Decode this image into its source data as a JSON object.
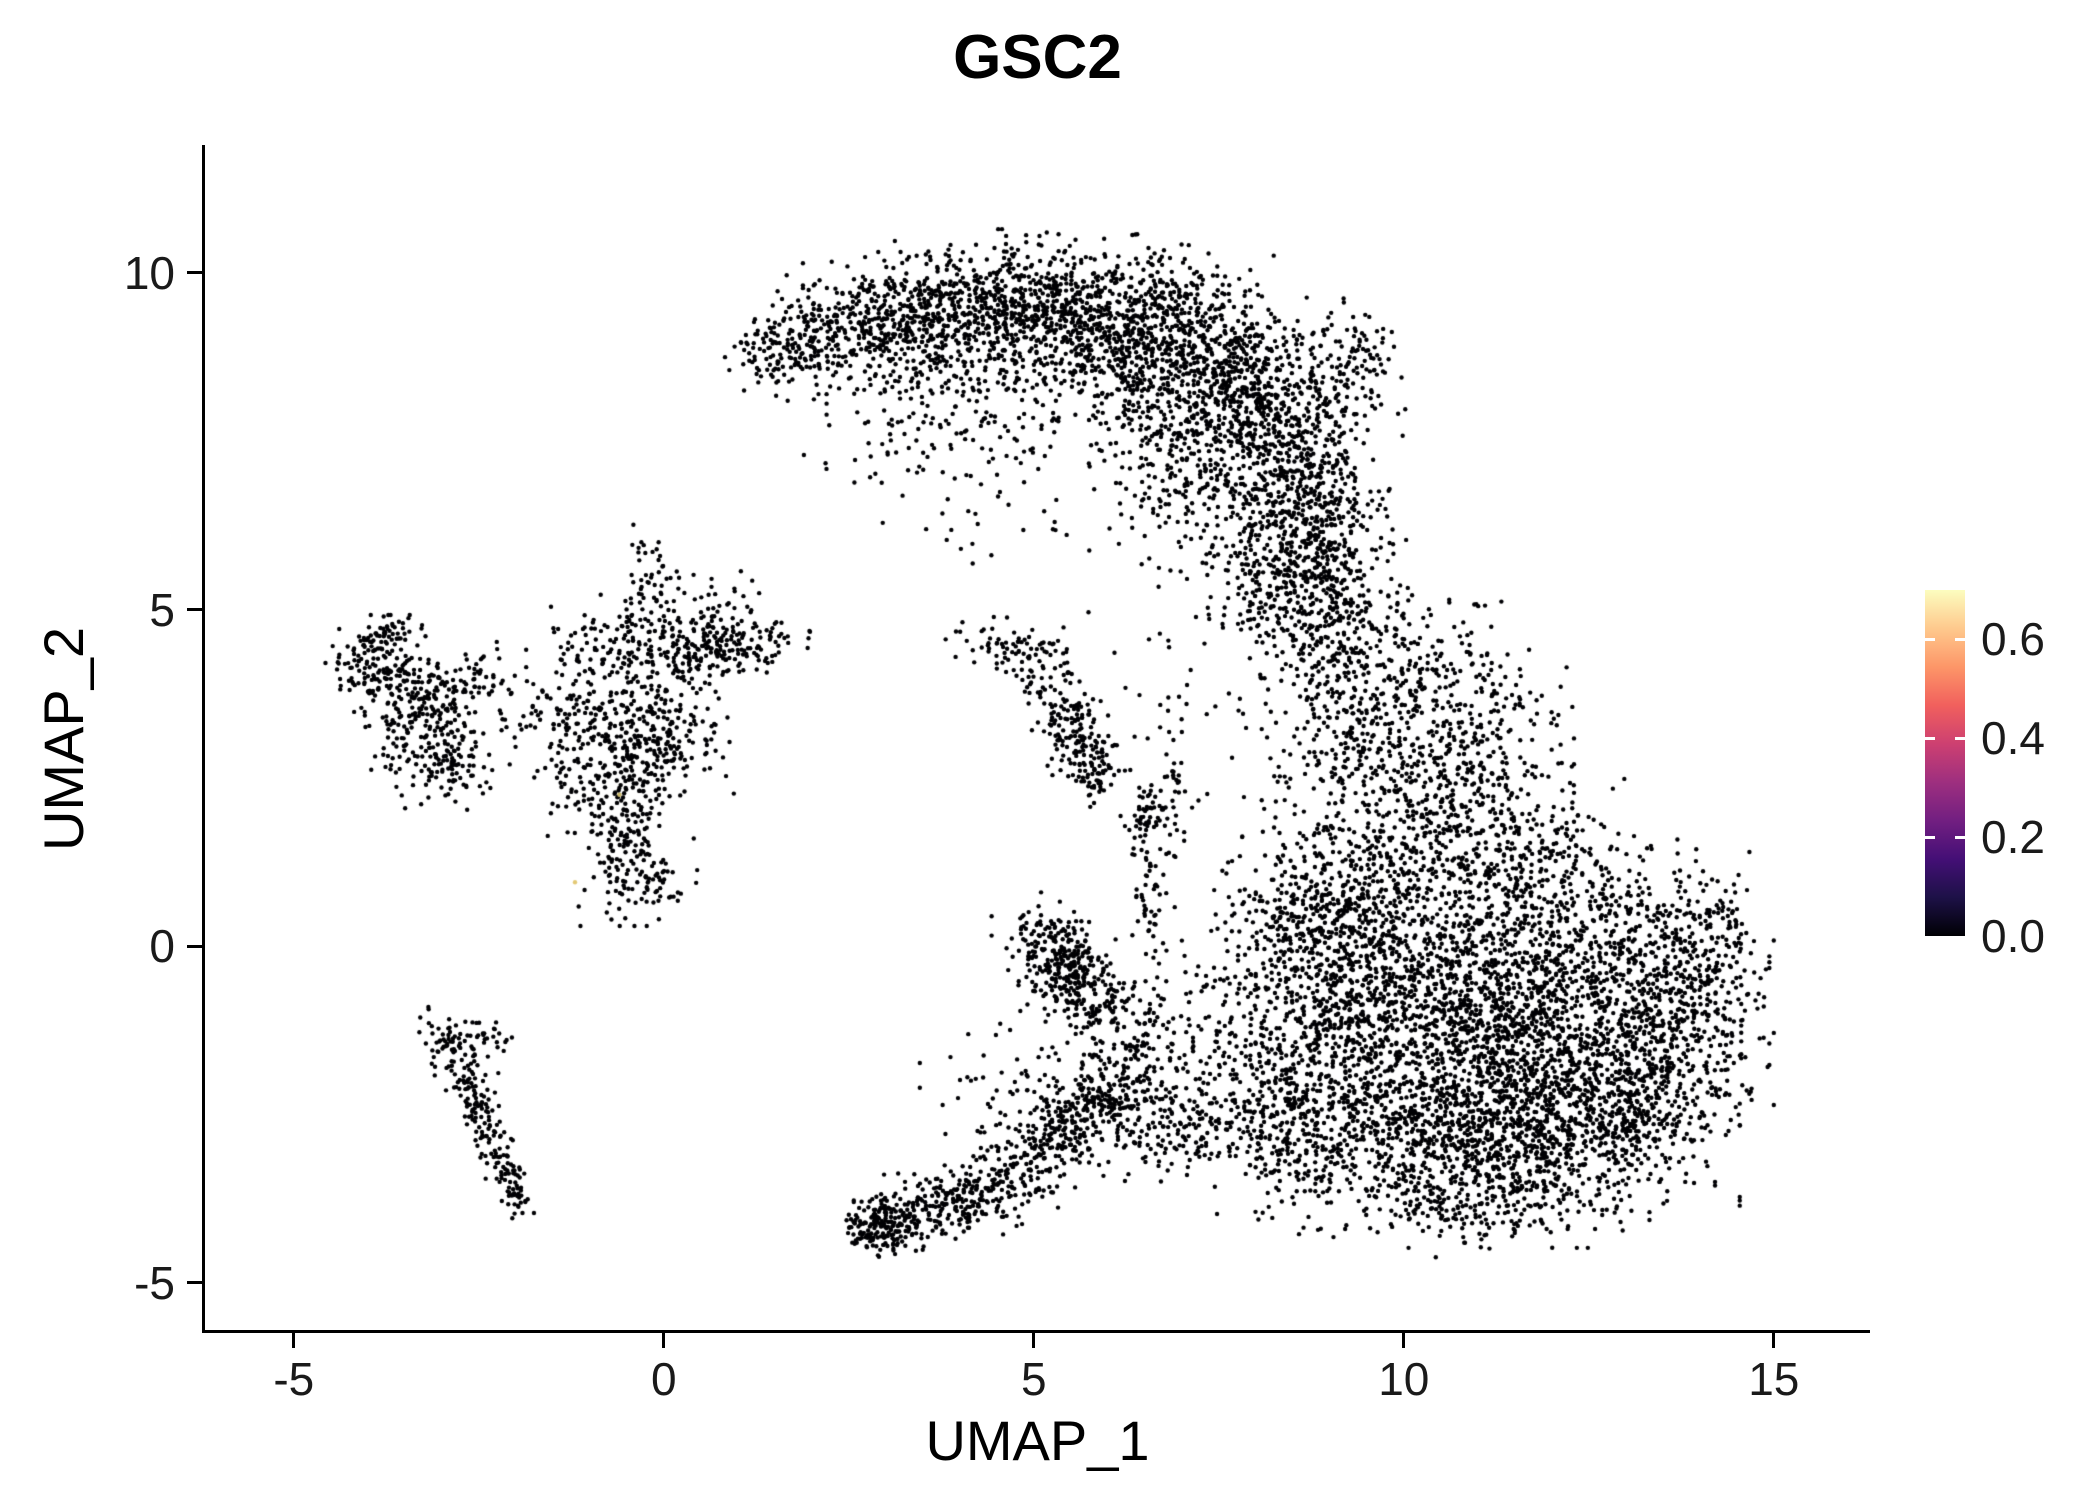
{
  "chart_data": {
    "type": "scatter",
    "title": "GSC2",
    "xlabel": "UMAP_1",
    "ylabel": "UMAP_2",
    "xlim": [
      -6.2,
      16.3
    ],
    "ylim": [
      -5.7,
      11.9
    ],
    "x_ticks": [
      -5,
      0,
      5,
      10,
      15
    ],
    "y_ticks": [
      -5,
      0,
      5,
      10
    ],
    "grid": false,
    "point_color": "#000004",
    "point_radius_px": 2.2,
    "seed": 42,
    "legend": {
      "position": "right",
      "vmin": 0.0,
      "vmax": 0.7,
      "tick_values": [
        0.6,
        0.4,
        0.2,
        0.0
      ],
      "tick_labels": [
        "0.6",
        "0.4",
        "0.2",
        "0.0"
      ],
      "gradient_top_to_bottom": [
        "#FCFDBF",
        "#FEC98D",
        "#FD9668",
        "#F1605D",
        "#CD4071",
        "#9E2F7F",
        "#721F81",
        "#440F76",
        "#1D1147",
        "#000004"
      ]
    },
    "clusters": [
      {
        "cx": 1.55,
        "cy": 8.85,
        "sx": 0.35,
        "sy": 0.3,
        "rot": -20,
        "n": 110
      },
      {
        "cx": 2.3,
        "cy": 9.15,
        "sx": 0.5,
        "sy": 0.35,
        "rot": -10,
        "n": 190
      },
      {
        "cx": 3.2,
        "cy": 9.35,
        "sx": 0.55,
        "sy": 0.4,
        "rot": 0,
        "n": 260
      },
      {
        "cx": 4.2,
        "cy": 9.5,
        "sx": 0.6,
        "sy": 0.45,
        "rot": 0,
        "n": 320
      },
      {
        "cx": 5.2,
        "cy": 9.45,
        "sx": 0.6,
        "sy": 0.5,
        "rot": 0,
        "n": 380
      },
      {
        "cx": 6.2,
        "cy": 9.2,
        "sx": 0.6,
        "sy": 0.55,
        "rot": 10,
        "n": 400
      },
      {
        "cx": 7.1,
        "cy": 8.8,
        "sx": 0.6,
        "sy": 0.65,
        "rot": 20,
        "n": 420
      },
      {
        "cx": 7.9,
        "cy": 8.2,
        "sx": 0.55,
        "sy": 0.75,
        "rot": 25,
        "n": 400
      },
      {
        "cx": 8.5,
        "cy": 7.2,
        "sx": 0.5,
        "sy": 0.8,
        "rot": 10,
        "n": 350
      },
      {
        "cx": 8.8,
        "cy": 6.2,
        "sx": 0.42,
        "sy": 0.7,
        "rot": 0,
        "n": 260
      },
      {
        "cx": 9.3,
        "cy": 8.6,
        "sx": 0.3,
        "sy": 0.5,
        "rot": 0,
        "n": 120
      },
      {
        "cx": 5.6,
        "cy": 8.3,
        "sx": 1.1,
        "sy": 0.6,
        "rot": 0,
        "n": 160
      },
      {
        "cx": 6.9,
        "cy": 7.5,
        "sx": 0.7,
        "sy": 0.7,
        "rot": 0,
        "n": 200
      },
      {
        "cx": 4.4,
        "cy": 7.9,
        "sx": 0.7,
        "sy": 0.6,
        "rot": 0,
        "n": 70
      },
      {
        "cx": 3.4,
        "cy": 8.6,
        "sx": 0.5,
        "sy": 0.5,
        "rot": 0,
        "n": 90
      },
      {
        "cx": 3.0,
        "cy": 7.6,
        "sx": 0.5,
        "sy": 0.6,
        "rot": 0,
        "n": 40
      },
      {
        "cx": 4.3,
        "cy": 6.4,
        "sx": 0.6,
        "sy": 0.6,
        "rot": 0,
        "n": 25
      },
      {
        "cx": 8.2,
        "cy": 5.3,
        "sx": 0.45,
        "sy": 0.55,
        "rot": 0,
        "n": 150
      },
      {
        "cx": 7.5,
        "cy": 6.3,
        "sx": 0.6,
        "sy": 0.6,
        "rot": 0,
        "n": 120
      },
      {
        "cx": 8.9,
        "cy": 5.0,
        "sx": 0.35,
        "sy": 0.6,
        "rot": 0,
        "n": 100
      },
      {
        "cx": 10.4,
        "cy": -0.6,
        "sx": 1.1,
        "sy": 0.95,
        "rot": 0,
        "n": 850
      },
      {
        "cx": 11.8,
        "cy": -1.3,
        "sx": 1.15,
        "sy": 0.95,
        "rot": 0,
        "n": 850
      },
      {
        "cx": 12.9,
        "cy": -0.6,
        "sx": 0.85,
        "sy": 0.85,
        "rot": 0,
        "n": 480
      },
      {
        "cx": 11.2,
        "cy": -2.4,
        "sx": 1.05,
        "sy": 0.75,
        "rot": 0,
        "n": 550
      },
      {
        "cx": 12.5,
        "cy": -2.5,
        "sx": 0.85,
        "sy": 0.65,
        "rot": 0,
        "n": 380
      },
      {
        "cx": 13.8,
        "cy": -0.9,
        "sx": 0.5,
        "sy": 0.75,
        "rot": 0,
        "n": 220
      },
      {
        "cx": 10.0,
        "cy": -3.0,
        "sx": 0.75,
        "sy": 0.55,
        "rot": 0,
        "n": 280
      },
      {
        "cx": 11.4,
        "cy": -3.4,
        "sx": 0.8,
        "sy": 0.45,
        "rot": 0,
        "n": 230
      },
      {
        "cx": 9.3,
        "cy": -1.6,
        "sx": 0.65,
        "sy": 0.85,
        "rot": 0,
        "n": 330
      },
      {
        "cx": 9.0,
        "cy": 0.2,
        "sx": 0.55,
        "sy": 0.8,
        "rot": 0,
        "n": 280
      },
      {
        "cx": 9.8,
        "cy": 1.4,
        "sx": 0.75,
        "sy": 0.8,
        "rot": 0,
        "n": 330
      },
      {
        "cx": 10.5,
        "cy": 2.7,
        "sx": 0.75,
        "sy": 0.8,
        "rot": 0,
        "n": 280
      },
      {
        "cx": 9.4,
        "cy": 3.5,
        "sx": 0.55,
        "sy": 0.9,
        "rot": 0,
        "n": 240
      },
      {
        "cx": 9.0,
        "cy": 4.8,
        "sx": 0.45,
        "sy": 0.8,
        "rot": 0,
        "n": 170
      },
      {
        "cx": 12.2,
        "cy": 0.9,
        "sx": 0.8,
        "sy": 0.6,
        "rot": 0,
        "n": 200
      },
      {
        "cx": 11.3,
        "cy": 1.6,
        "sx": 0.7,
        "sy": 0.6,
        "rot": 0,
        "n": 180
      },
      {
        "cx": 13.5,
        "cy": -2.3,
        "sx": 0.5,
        "sy": 0.5,
        "rot": 0,
        "n": 130
      },
      {
        "cx": 10.9,
        "cy": -3.9,
        "sx": 0.6,
        "sy": 0.3,
        "rot": 0,
        "n": 90
      },
      {
        "cx": 14.2,
        "cy": 0.2,
        "sx": 0.3,
        "sy": 0.5,
        "rot": 0,
        "n": 80
      },
      {
        "cx": 10.3,
        "cy": 4.4,
        "sx": 0.5,
        "sy": 0.5,
        "rot": 0,
        "n": 90
      },
      {
        "cx": 11.0,
        "cy": 3.6,
        "sx": 0.5,
        "sy": 0.5,
        "rot": 0,
        "n": 90
      },
      {
        "cx": 7.0,
        "cy": -2.7,
        "sx": 0.65,
        "sy": 0.4,
        "rot": -15,
        "n": 180
      },
      {
        "cx": 8.0,
        "cy": -2.1,
        "sx": 0.6,
        "sy": 0.5,
        "rot": -20,
        "n": 200
      },
      {
        "cx": 8.6,
        "cy": -3.1,
        "sx": 0.5,
        "sy": 0.45,
        "rot": 0,
        "n": 140
      },
      {
        "cx": 7.8,
        "cy": -0.6,
        "sx": 0.7,
        "sy": 0.7,
        "rot": 0,
        "n": 130
      },
      {
        "cx": 8.4,
        "cy": 0.6,
        "sx": 0.5,
        "sy": 0.6,
        "rot": 0,
        "n": 90
      },
      {
        "cx": 4.6,
        "cy": 4.45,
        "sx": 0.35,
        "sy": 0.18,
        "rot": -10,
        "n": 70
      },
      {
        "cx": 5.55,
        "cy": 3.15,
        "sx": 0.22,
        "sy": 0.42,
        "rot": 25,
        "n": 150
      },
      {
        "cx": 5.85,
        "cy": 2.55,
        "sx": 0.15,
        "sy": 0.2,
        "rot": 0,
        "n": 45
      },
      {
        "cx": 5.1,
        "cy": 3.9,
        "sx": 0.25,
        "sy": 0.25,
        "rot": 0,
        "n": 35
      },
      {
        "cx": 5.4,
        "cy": -0.35,
        "sx": 0.32,
        "sy": 0.3,
        "rot": 0,
        "n": 210
      },
      {
        "cx": 5.85,
        "cy": -0.8,
        "sx": 0.3,
        "sy": 0.3,
        "rot": 0,
        "n": 110
      },
      {
        "cx": 5.15,
        "cy": 0.2,
        "sx": 0.3,
        "sy": 0.25,
        "rot": 0,
        "n": 70
      },
      {
        "cx": 6.3,
        "cy": -1.4,
        "sx": 0.4,
        "sy": 0.45,
        "rot": 0,
        "n": 90
      },
      {
        "cx": 6.55,
        "cy": 0.8,
        "sx": 0.1,
        "sy": 0.55,
        "rot": 0,
        "n": 55
      },
      {
        "cx": 6.6,
        "cy": 1.95,
        "sx": 0.18,
        "sy": 0.22,
        "rot": 0,
        "n": 55
      },
      {
        "cx": 6.9,
        "cy": 2.5,
        "sx": 0.15,
        "sy": 0.8,
        "rot": 0,
        "n": 40
      },
      {
        "cx": 6.1,
        "cy": -2.0,
        "sx": 0.4,
        "sy": 0.4,
        "rot": 0,
        "n": 90
      },
      {
        "cx": 3.05,
        "cy": -4.05,
        "sx": 0.3,
        "sy": 0.22,
        "rot": 10,
        "n": 150
      },
      {
        "cx": 3.8,
        "cy": -3.85,
        "sx": 0.45,
        "sy": 0.22,
        "rot": 5,
        "n": 160
      },
      {
        "cx": 4.6,
        "cy": -3.5,
        "sx": 0.45,
        "sy": 0.28,
        "rot": 20,
        "n": 130
      },
      {
        "cx": 5.3,
        "cy": -2.9,
        "sx": 0.4,
        "sy": 0.3,
        "rot": 30,
        "n": 140
      },
      {
        "cx": 5.75,
        "cy": -2.4,
        "sx": 0.35,
        "sy": 0.3,
        "rot": 30,
        "n": 110
      },
      {
        "cx": 4.9,
        "cy": -2.2,
        "sx": 0.6,
        "sy": 0.45,
        "rot": 0,
        "n": 80
      },
      {
        "cx": 2.85,
        "cy": -4.25,
        "sx": 0.15,
        "sy": 0.15,
        "rot": 0,
        "n": 50
      },
      {
        "cx": -0.3,
        "cy": 4.5,
        "sx": 0.65,
        "sy": 0.3,
        "rot": 0,
        "n": 150
      },
      {
        "cx": 0.55,
        "cy": 4.4,
        "sx": 0.45,
        "sy": 0.3,
        "rot": 0,
        "n": 100
      },
      {
        "cx": -0.5,
        "cy": 3.6,
        "sx": 0.5,
        "sy": 0.45,
        "rot": 0,
        "n": 150
      },
      {
        "cx": -0.35,
        "cy": 2.6,
        "sx": 0.28,
        "sy": 0.55,
        "rot": 0,
        "n": 150
      },
      {
        "cx": -0.55,
        "cy": 1.5,
        "sx": 0.25,
        "sy": 0.5,
        "rot": 0,
        "n": 120
      },
      {
        "cx": -1.4,
        "cy": 3.3,
        "sx": 0.4,
        "sy": 0.4,
        "rot": 0,
        "n": 100
      },
      {
        "cx": 0.3,
        "cy": 3.2,
        "sx": 0.4,
        "sy": 0.4,
        "rot": 0,
        "n": 70
      },
      {
        "cx": -0.25,
        "cy": 5.3,
        "sx": 0.22,
        "sy": 0.4,
        "rot": 0,
        "n": 60
      },
      {
        "cx": 0.8,
        "cy": 5.0,
        "sx": 0.3,
        "sy": 0.3,
        "rot": 0,
        "n": 45
      },
      {
        "cx": 1.3,
        "cy": 4.5,
        "sx": 0.3,
        "sy": 0.18,
        "rot": 0,
        "n": 50
      },
      {
        "cx": -1.0,
        "cy": 2.3,
        "sx": 0.3,
        "sy": 0.4,
        "rot": 0,
        "n": 60
      },
      {
        "cx": -0.1,
        "cy": 1.0,
        "sx": 0.3,
        "sy": 0.25,
        "rot": 0,
        "n": 50
      },
      {
        "cx": -3.9,
        "cy": 4.2,
        "sx": 0.28,
        "sy": 0.3,
        "rot": 0,
        "n": 120
      },
      {
        "cx": -3.35,
        "cy": 3.9,
        "sx": 0.32,
        "sy": 0.28,
        "rot": 0,
        "n": 90
      },
      {
        "cx": -3.2,
        "cy": 3.2,
        "sx": 0.35,
        "sy": 0.4,
        "rot": 0,
        "n": 150
      },
      {
        "cx": -2.9,
        "cy": 2.7,
        "sx": 0.3,
        "sy": 0.28,
        "rot": 0,
        "n": 80
      },
      {
        "cx": -2.55,
        "cy": 3.9,
        "sx": 0.3,
        "sy": 0.3,
        "rot": 0,
        "n": 60
      },
      {
        "cx": -3.7,
        "cy": 4.6,
        "sx": 0.2,
        "sy": 0.15,
        "rot": 0,
        "n": 40
      },
      {
        "cx": -2.85,
        "cy": -1.55,
        "sx": 0.14,
        "sy": 0.3,
        "rot": 35,
        "n": 60
      },
      {
        "cx": -2.6,
        "cy": -2.2,
        "sx": 0.12,
        "sy": 0.35,
        "rot": 30,
        "n": 70
      },
      {
        "cx": -2.35,
        "cy": -2.9,
        "sx": 0.12,
        "sy": 0.35,
        "rot": 25,
        "n": 60
      },
      {
        "cx": -2.1,
        "cy": -3.5,
        "sx": 0.12,
        "sy": 0.25,
        "rot": 20,
        "n": 40
      },
      {
        "cx": -2.45,
        "cy": -1.35,
        "sx": 0.2,
        "sy": 0.12,
        "rot": -20,
        "n": 30
      },
      {
        "cx": -1.95,
        "cy": -3.8,
        "sx": 0.1,
        "sy": 0.1,
        "rot": 0,
        "n": 15
      },
      {
        "cx": 6.5,
        "cy": 4.5,
        "sx": 1.2,
        "sy": 1.0,
        "rot": 0,
        "n": 15
      },
      {
        "cx": 7.6,
        "cy": 3.0,
        "sx": 0.8,
        "sy": 0.8,
        "rot": 0,
        "n": 25
      }
    ],
    "colored_points": [
      {
        "x": -1.2,
        "y": 0.95,
        "color": "#E3C975"
      },
      {
        "x": -0.6,
        "y": 2.25,
        "color": "#CBB96B"
      }
    ]
  },
  "style": {
    "background": "#FFFFFF",
    "axis_color": "#000000",
    "text_color": "#000000"
  }
}
